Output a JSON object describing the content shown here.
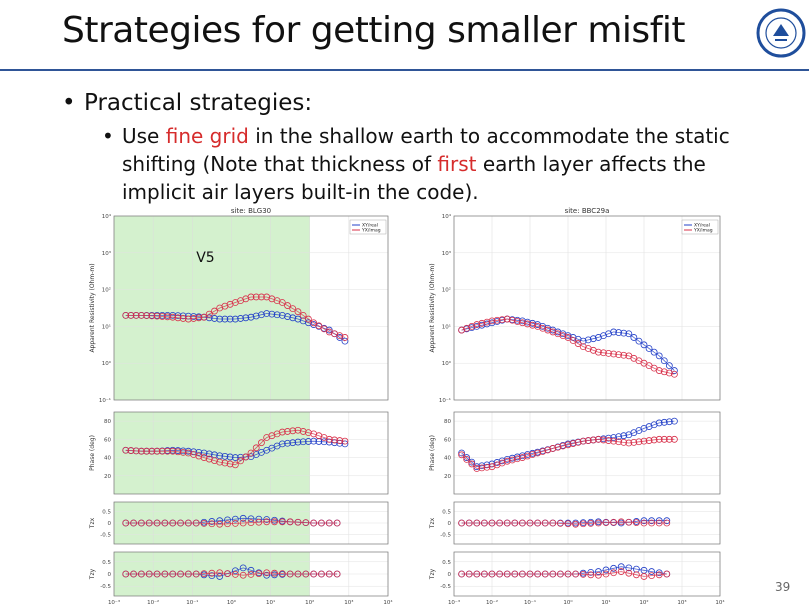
{
  "slide": {
    "title": "Strategies for getting smaller misfit",
    "bullet1": "Practical strategies:",
    "bullet2_parts": [
      "Use ",
      "fine grid",
      " in the shallow earth to accommodate the static shifting (Note that thickness of ",
      "first",
      " earth layer affects the implicit air layers built-in the code)."
    ],
    "page_number": "39",
    "logo_icon": "university-seal-icon",
    "accent_color": "#d62c2c",
    "rule_color": "#2f5597"
  },
  "chart_data": [
    {
      "type": "scatter",
      "site": "site: BLG30",
      "annotation": "V5",
      "highlight": "green shaded region marks periods used",
      "legend": [
        "XY/real",
        "YX/imag"
      ],
      "legend_placement": "top-right",
      "xscale": "log",
      "x_ticks": [
        "10⁻³",
        "10⁻²",
        "10⁻¹",
        "10⁰",
        "10¹",
        "10²",
        "10³",
        "10⁴"
      ],
      "subplots": [
        {
          "ylabel": "Apparent Resistivity (Ohm-m)",
          "yscale": "log",
          "yticks": [
            "10⁻¹",
            "10⁰",
            "10¹",
            "10²",
            "10³",
            "10⁴"
          ],
          "series": [
            {
              "name": "XY",
              "logx": [
                -2.7,
                -2.3,
                -1.9,
                -1.5,
                -1.1,
                -0.7,
                -0.3,
                0.1,
                0.5,
                0.9,
                1.3,
                1.7,
                2.1,
                2.5,
                2.9
              ],
              "logy": [
                1.3,
                1.3,
                1.3,
                1.3,
                1.28,
                1.25,
                1.2,
                1.2,
                1.25,
                1.35,
                1.3,
                1.2,
                1.05,
                0.9,
                0.6
              ]
            },
            {
              "name": "YX",
              "logx": [
                -2.7,
                -2.3,
                -1.9,
                -1.5,
                -1.1,
                -0.7,
                -0.3,
                0.1,
                0.5,
                0.9,
                1.3,
                1.7,
                2.1,
                2.5,
                2.9
              ],
              "logy": [
                1.3,
                1.3,
                1.28,
                1.25,
                1.2,
                1.25,
                1.5,
                1.65,
                1.8,
                1.8,
                1.65,
                1.4,
                1.1,
                0.85,
                0.7
              ]
            }
          ]
        },
        {
          "ylabel": "Phase (deg)",
          "yticks": [
            "20",
            "40",
            "60",
            "80"
          ],
          "series": [
            {
              "name": "XY",
              "logx": [
                -2.7,
                -2.3,
                -1.9,
                -1.5,
                -1.1,
                -0.7,
                -0.3,
                0.1,
                0.5,
                0.9,
                1.3,
                1.7,
                2.1,
                2.5,
                2.9
              ],
              "y": [
                48,
                47,
                47,
                48,
                47,
                45,
                42,
                40,
                41,
                48,
                55,
                57,
                58,
                57,
                55
              ]
            },
            {
              "name": "YX",
              "logx": [
                -2.7,
                -2.3,
                -1.9,
                -1.5,
                -1.1,
                -0.7,
                -0.3,
                0.1,
                0.5,
                0.9,
                1.3,
                1.7,
                2.1,
                2.5,
                2.9
              ],
              "y": [
                48,
                47,
                47,
                47,
                45,
                40,
                35,
                32,
                45,
                62,
                68,
                70,
                66,
                60,
                58
              ]
            }
          ]
        },
        {
          "ylabel": "Tzx",
          "yticks": [
            "-0.5",
            "0",
            "0.5"
          ],
          "series": [
            {
              "name": "real",
              "logx": [
                -2.7,
                -2.1,
                -1.5,
                -0.9,
                -0.3,
                0.3,
                0.9,
                1.5,
                2.1,
                2.7
              ],
              "y": [
                0,
                0,
                0,
                0,
                0.1,
                0.2,
                0.15,
                0.05,
                0,
                0
              ]
            },
            {
              "name": "imag",
              "logx": [
                -2.7,
                -2.1,
                -1.5,
                -0.9,
                -0.3,
                0.3,
                0.9,
                1.5,
                2.1,
                2.7
              ],
              "y": [
                0,
                0,
                0,
                0,
                -0.05,
                0,
                0.05,
                0.05,
                0,
                0
              ]
            }
          ]
        },
        {
          "ylabel": "Tzy",
          "yticks": [
            "-0.5",
            "0",
            "0.5"
          ],
          "series": [
            {
              "name": "real",
              "logx": [
                -2.7,
                -2.1,
                -1.5,
                -0.9,
                -0.3,
                0.3,
                0.9,
                1.5,
                2.1,
                2.7
              ],
              "y": [
                0,
                0,
                0,
                0,
                -0.1,
                0.25,
                -0.05,
                0,
                0,
                0
              ]
            },
            {
              "name": "imag",
              "logx": [
                -2.7,
                -2.1,
                -1.5,
                -0.9,
                -0.3,
                0.3,
                0.9,
                1.5,
                2.1,
                2.7
              ],
              "y": [
                0,
                0,
                0,
                0,
                0.05,
                -0.05,
                0.05,
                0,
                0,
                0
              ]
            }
          ]
        }
      ]
    },
    {
      "type": "scatter",
      "site": "site: BBC29a",
      "legend": [
        "XY/real",
        "YX/imag"
      ],
      "legend_placement": "top-right",
      "xscale": "log",
      "x_ticks": [
        "10⁻³",
        "10⁻²",
        "10⁻¹",
        "10⁰",
        "10¹",
        "10²",
        "10³",
        "10⁴"
      ],
      "subplots": [
        {
          "ylabel": "Apparent Resistivity (Ohm-m)",
          "yscale": "log",
          "yticks": [
            "10⁻¹",
            "10⁰",
            "10¹",
            "10²",
            "10³",
            "10⁴"
          ],
          "series": [
            {
              "name": "XY",
              "logx": [
                -2.8,
                -2.4,
                -2.0,
                -1.6,
                -1.2,
                -0.8,
                -0.4,
                0.0,
                0.4,
                0.8,
                1.2,
                1.6,
                2.0,
                2.4,
                2.8
              ],
              "logy": [
                0.9,
                1.0,
                1.1,
                1.2,
                1.15,
                1.05,
                0.9,
                0.75,
                0.6,
                0.7,
                0.85,
                0.8,
                0.5,
                0.2,
                -0.2
              ]
            },
            {
              "name": "YX",
              "logx": [
                -2.8,
                -2.4,
                -2.0,
                -1.6,
                -1.2,
                -0.8,
                -0.4,
                0.0,
                0.4,
                0.8,
                1.2,
                1.6,
                2.0,
                2.4,
                2.8
              ],
              "logy": [
                0.9,
                1.05,
                1.15,
                1.2,
                1.1,
                1.0,
                0.85,
                0.7,
                0.45,
                0.3,
                0.25,
                0.2,
                0.0,
                -0.2,
                -0.3
              ]
            }
          ]
        },
        {
          "ylabel": "Phase (deg)",
          "yticks": [
            "20",
            "40",
            "60",
            "80"
          ],
          "series": [
            {
              "name": "XY",
              "logx": [
                -2.8,
                -2.4,
                -2.0,
                -1.6,
                -1.2,
                -0.8,
                -0.4,
                0.0,
                0.4,
                0.8,
                1.2,
                1.6,
                2.0,
                2.4,
                2.8
              ],
              "y": [
                45,
                30,
                33,
                38,
                42,
                46,
                50,
                55,
                58,
                60,
                62,
                65,
                72,
                78,
                80
              ]
            },
            {
              "name": "YX",
              "logx": [
                -2.8,
                -2.4,
                -2.0,
                -1.6,
                -1.2,
                -0.8,
                -0.4,
                0.0,
                0.4,
                0.8,
                1.2,
                1.6,
                2.0,
                2.4,
                2.8
              ],
              "y": [
                43,
                28,
                30,
                36,
                40,
                45,
                50,
                54,
                58,
                60,
                58,
                56,
                58,
                60,
                60
              ]
            }
          ]
        },
        {
          "ylabel": "Tzx",
          "yticks": [
            "-0.5",
            "0",
            "0.5"
          ],
          "series": [
            {
              "name": "real",
              "logx": [
                -2.8,
                -2.2,
                -1.6,
                -1.0,
                -0.4,
                0.2,
                0.8,
                1.4,
                2.0,
                2.6
              ],
              "y": [
                0,
                0,
                0,
                0,
                0,
                0,
                0.05,
                0,
                0.1,
                0.1
              ]
            },
            {
              "name": "imag",
              "logx": [
                -2.8,
                -2.2,
                -1.6,
                -1.0,
                -0.4,
                0.2,
                0.8,
                1.4,
                2.0,
                2.6
              ],
              "y": [
                0,
                0,
                0,
                0,
                0,
                -0.05,
                0,
                0.05,
                0,
                0
              ]
            }
          ]
        },
        {
          "ylabel": "Tzy",
          "yticks": [
            "-0.5",
            "0",
            "0.5"
          ],
          "series": [
            {
              "name": "real",
              "logx": [
                -2.8,
                -2.2,
                -1.6,
                -1.0,
                -0.4,
                0.2,
                0.8,
                1.4,
                2.0,
                2.6
              ],
              "y": [
                0,
                0,
                0,
                0,
                0,
                0,
                0.1,
                0.3,
                0.15,
                0
              ]
            },
            {
              "name": "imag",
              "logx": [
                -2.8,
                -2.2,
                -1.6,
                -1.0,
                -0.4,
                0.2,
                0.8,
                1.4,
                2.0,
                2.6
              ],
              "y": [
                0,
                0,
                0,
                0,
                0,
                0,
                -0.05,
                0.1,
                -0.1,
                0
              ]
            }
          ]
        }
      ]
    }
  ],
  "colors": {
    "xy": "#2340c8",
    "yx": "#d8304a",
    "green_shade": "#cdeec5"
  }
}
